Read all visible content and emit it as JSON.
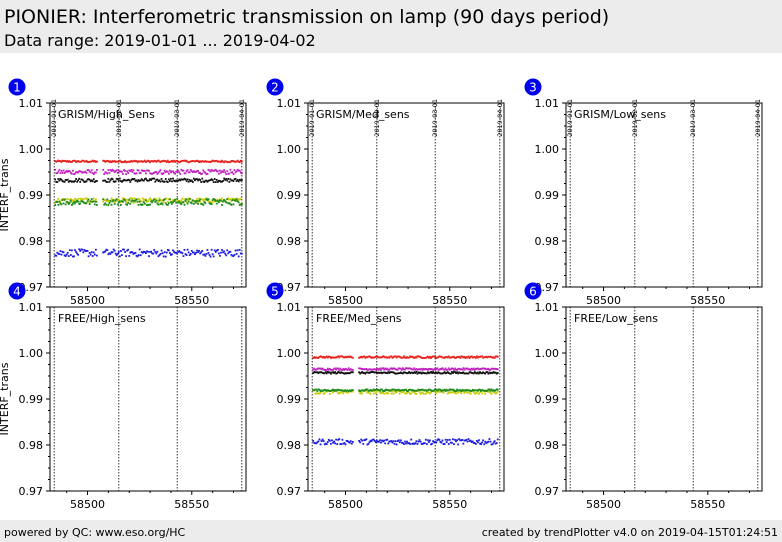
{
  "header": {
    "title": "PIONIER: Interferometric transmission on lamp (90 days period)",
    "subtitle": "Data range: 2019-01-01 ... 2019-04-02"
  },
  "footer": {
    "left": "powered by QC: www.eso.org/HC",
    "right": "created by trendPlotter v4.0 on 2019-04-15T01:24:51"
  },
  "colors": {
    "red": "#e8211b",
    "magenta": "#c020c0",
    "black": "#111111",
    "yellow": "#c8c800",
    "green": "#1a8a1a",
    "blue": "#1a1ae0",
    "badge": "#0000ee"
  },
  "chart_data": [
    {
      "type": "scatter",
      "index": "1",
      "title": "GRISM/High_Sens",
      "ylabel": "INTERF_trans",
      "xlabel": "",
      "xlim": [
        58482,
        58576
      ],
      "ylim": [
        0.97,
        1.01
      ],
      "xticks": [
        58500,
        58550
      ],
      "yticks": [
        0.97,
        0.98,
        0.99,
        1.0,
        1.01
      ],
      "ytick_labels": [
        "0.97",
        "0.98",
        "0.99",
        "1.00",
        "1.01"
      ],
      "date_lines": [
        {
          "mjd": 58484,
          "label": "2019-01-01"
        },
        {
          "mjd": 58515,
          "label": "2019-02-01"
        },
        {
          "mjd": 58543,
          "label": "2019-03-01"
        },
        {
          "mjd": 58574,
          "label": "2019-04-01"
        }
      ],
      "series": [
        {
          "color": "red",
          "x_range": [
            58484.5,
            58574
          ],
          "y": 0.9973,
          "jitter": 0.0002,
          "gaps": [
            [
              58505,
              58507
            ]
          ]
        },
        {
          "color": "magenta",
          "x_range": [
            58484.5,
            58574
          ],
          "y": 0.995,
          "jitter": 0.0005,
          "gaps": [
            [
              58505,
              58507
            ]
          ]
        },
        {
          "color": "black",
          "x_range": [
            58484.5,
            58574
          ],
          "y": 0.9932,
          "jitter": 0.0004,
          "gaps": [
            [
              58505,
              58507
            ]
          ]
        },
        {
          "color": "yellow",
          "x_range": [
            58484.5,
            58574
          ],
          "y": 0.9888,
          "jitter": 0.0005,
          "gaps": [
            [
              58505,
              58507
            ]
          ]
        },
        {
          "color": "green",
          "x_range": [
            58484.5,
            58574
          ],
          "y": 0.9885,
          "jitter": 0.0007,
          "gaps": [
            [
              58505,
              58507
            ]
          ]
        },
        {
          "color": "blue",
          "x_range": [
            58484.5,
            58574
          ],
          "y": 0.9774,
          "jitter": 0.0008,
          "gaps": [
            [
              58505,
              58507
            ]
          ]
        }
      ]
    },
    {
      "type": "scatter",
      "index": "2",
      "title": "GRISM/Med_sens",
      "ylabel": "",
      "xlabel": "",
      "xlim": [
        58482,
        58576
      ],
      "ylim": [
        0.97,
        1.01
      ],
      "xticks": [
        58500,
        58550
      ],
      "yticks": [
        0.97,
        0.98,
        0.99,
        1.0,
        1.01
      ],
      "ytick_labels": [
        "0.97",
        "0.98",
        "0.99",
        "1.00",
        "1.01"
      ],
      "date_lines": [
        {
          "mjd": 58484,
          "label": "2019-01-01"
        },
        {
          "mjd": 58515,
          "label": "2019-02-01"
        },
        {
          "mjd": 58543,
          "label": "2019-03-01"
        },
        {
          "mjd": 58574,
          "label": "2019-04-01"
        }
      ],
      "series": []
    },
    {
      "type": "scatter",
      "index": "3",
      "title": "GRISM/Low_sens",
      "ylabel": "",
      "xlabel": "",
      "xlim": [
        58482,
        58576
      ],
      "ylim": [
        0.97,
        1.01
      ],
      "xticks": [
        58500,
        58550
      ],
      "yticks": [
        0.97,
        0.98,
        0.99,
        1.0,
        1.01
      ],
      "ytick_labels": [
        "0.97",
        "0.98",
        "0.99",
        "1.00",
        "1.01"
      ],
      "date_lines": [
        {
          "mjd": 58484,
          "label": "2019-01-01"
        },
        {
          "mjd": 58515,
          "label": "2019-02-01"
        },
        {
          "mjd": 58543,
          "label": "2019-03-01"
        },
        {
          "mjd": 58574,
          "label": "2019-04-01"
        }
      ],
      "series": []
    },
    {
      "type": "scatter",
      "index": "4",
      "title": "FREE/High_sens",
      "ylabel": "INTERF_trans",
      "xlabel": "",
      "xlim": [
        58482,
        58576
      ],
      "ylim": [
        0.97,
        1.01
      ],
      "xticks": [
        58500,
        58550
      ],
      "yticks": [
        0.97,
        0.98,
        0.99,
        1.0,
        1.01
      ],
      "ytick_labels": [
        "0.97",
        "0.98",
        "0.99",
        "1.00",
        "1.01"
      ],
      "date_lines": [
        {
          "mjd": 58484,
          "label": ""
        },
        {
          "mjd": 58515,
          "label": ""
        },
        {
          "mjd": 58543,
          "label": ""
        },
        {
          "mjd": 58574,
          "label": ""
        }
      ],
      "series": []
    },
    {
      "type": "scatter",
      "index": "5",
      "title": "FREE/Med_sens",
      "ylabel": "",
      "xlabel": "",
      "xlim": [
        58482,
        58576
      ],
      "ylim": [
        0.97,
        1.01
      ],
      "xticks": [
        58500,
        58550
      ],
      "yticks": [
        0.97,
        0.98,
        0.99,
        1.0,
        1.01
      ],
      "ytick_labels": [
        "0.97",
        "0.98",
        "0.99",
        "1.00",
        "1.01"
      ],
      "date_lines": [
        {
          "mjd": 58484,
          "label": ""
        },
        {
          "mjd": 58515,
          "label": ""
        },
        {
          "mjd": 58543,
          "label": ""
        },
        {
          "mjd": 58574,
          "label": ""
        }
      ],
      "series": [
        {
          "color": "red",
          "x_range": [
            58484.5,
            58573
          ],
          "y": 0.9991,
          "jitter": 0.0002,
          "gaps": [
            [
              58504,
              58506
            ]
          ]
        },
        {
          "color": "magenta",
          "x_range": [
            58484.5,
            58573
          ],
          "y": 0.9965,
          "jitter": 0.0002,
          "gaps": [
            [
              58504,
              58506
            ]
          ]
        },
        {
          "color": "black",
          "x_range": [
            58484.5,
            58573
          ],
          "y": 0.9957,
          "jitter": 0.0002,
          "gaps": [
            [
              58504,
              58506
            ]
          ]
        },
        {
          "color": "yellow",
          "x_range": [
            58484.5,
            58573
          ],
          "y": 0.9915,
          "jitter": 0.0004,
          "gaps": [
            [
              58504,
              58506
            ]
          ]
        },
        {
          "color": "green",
          "x_range": [
            58484.5,
            58573
          ],
          "y": 0.9919,
          "jitter": 0.0002,
          "gaps": [
            [
              58504,
              58506
            ]
          ]
        },
        {
          "color": "blue",
          "x_range": [
            58484.5,
            58573
          ],
          "y": 0.9807,
          "jitter": 0.0006,
          "gaps": [
            [
              58504,
              58506
            ]
          ]
        }
      ]
    },
    {
      "type": "scatter",
      "index": "6",
      "title": "FREE/Low_sens",
      "ylabel": "",
      "xlabel": "",
      "xlim": [
        58482,
        58576
      ],
      "ylim": [
        0.97,
        1.01
      ],
      "xticks": [
        58500,
        58550
      ],
      "yticks": [
        0.97,
        0.98,
        0.99,
        1.0,
        1.01
      ],
      "ytick_labels": [
        "0.97",
        "0.98",
        "0.99",
        "1.00",
        "1.01"
      ],
      "date_lines": [
        {
          "mjd": 58484,
          "label": ""
        },
        {
          "mjd": 58515,
          "label": ""
        },
        {
          "mjd": 58543,
          "label": ""
        },
        {
          "mjd": 58574,
          "label": ""
        }
      ],
      "series": []
    }
  ]
}
